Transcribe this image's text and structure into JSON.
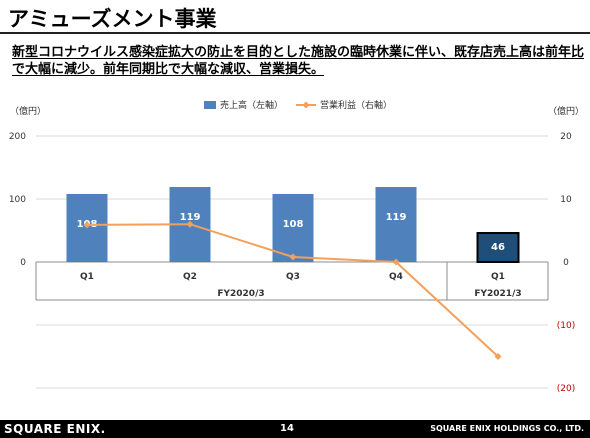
{
  "header": {
    "title": "アミューズメント事業",
    "subtitle": "新型コロナウイルス感染症拡大の防止を目的とした施設の臨時休業に伴い、既存店売上高は前年比で大幅に減少。前年同期比で大幅な減収、営業損失。"
  },
  "footer": {
    "logo": "SQUARE ENIX.",
    "page": "14",
    "company": "SQUARE ENIX HOLDINGS CO., LTD."
  },
  "chart_data": {
    "type": "bar",
    "left_unit": "（億円）",
    "right_unit": "（億円）",
    "categories": [
      "Q1",
      "Q2",
      "Q3",
      "Q4",
      "Q1"
    ],
    "groups": [
      {
        "label": "FY2020/3",
        "categories": [
          "Q1",
          "Q2",
          "Q3",
          "Q4"
        ]
      },
      {
        "label": "FY2021/3",
        "categories": [
          "Q1"
        ]
      }
    ],
    "left_axis": {
      "ylim": [
        -200,
        200
      ],
      "ticks": [
        0,
        100,
        200
      ],
      "tick_labels": [
        "0",
        "100",
        "200"
      ]
    },
    "right_axis": {
      "ylim": [
        -20,
        20
      ],
      "ticks": [
        -20,
        -10,
        0,
        10,
        20
      ],
      "tick_labels": [
        "(20)",
        "(10)",
        "0",
        "10",
        "20"
      ]
    },
    "series": [
      {
        "name": "売上高（左軸）",
        "type": "bar",
        "axis": "left",
        "values": [
          108,
          119,
          108,
          119,
          46
        ],
        "labels": [
          "108",
          "119",
          "108",
          "119",
          "46"
        ],
        "highlight_index": 4
      },
      {
        "name": "営業利益（右軸）",
        "type": "line",
        "axis": "right",
        "values": [
          5.9,
          6.0,
          0.8,
          0.0,
          -15.0
        ]
      }
    ],
    "colors": {
      "bar": "#4f81bd",
      "bar_highlight": "#1f4e79",
      "line": "#f2a05c",
      "negative_tick": "#c00000"
    },
    "legend_position": "top-center"
  }
}
